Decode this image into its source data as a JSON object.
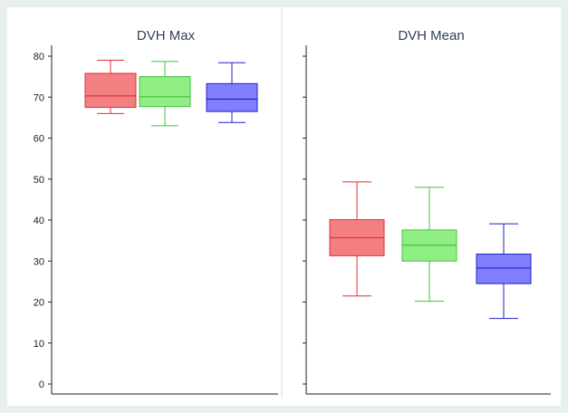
{
  "chart_data": [
    {
      "type": "box",
      "title": "DVH Max",
      "ylim": [
        0,
        80
      ],
      "yticks": [
        0,
        10,
        20,
        30,
        40,
        50,
        60,
        70,
        80
      ],
      "grid": false,
      "series": [
        {
          "color": "#e03030",
          "fill": "#f37f83",
          "whisker_low": 66,
          "q1": 67.5,
          "median": 70.3,
          "q3": 75.8,
          "whisker_high": 79
        },
        {
          "color": "#44c040",
          "fill": "#90ee85",
          "whisker_low": 63,
          "q1": 67.7,
          "median": 70.1,
          "q3": 75,
          "whisker_high": 78.7
        },
        {
          "color": "#2020c8",
          "fill": "#8080ff",
          "whisker_low": 63.8,
          "q1": 66.5,
          "median": 69.5,
          "q3": 73.3,
          "whisker_high": 78.4
        }
      ]
    },
    {
      "type": "box",
      "title": "DVH Mean",
      "ylim": [
        0,
        80
      ],
      "yticks": [
        0,
        10,
        20,
        30,
        40,
        50,
        60,
        70,
        80
      ],
      "grid": false,
      "series": [
        {
          "color": "#e03030",
          "fill": "#f37f83",
          "whisker_low": 21.5,
          "q1": 31.3,
          "median": 35.7,
          "q3": 40.1,
          "whisker_high": 49.3
        },
        {
          "color": "#44c040",
          "fill": "#90ee85",
          "whisker_low": 20.2,
          "q1": 30,
          "median": 33.9,
          "q3": 37.6,
          "whisker_high": 48
        },
        {
          "color": "#2020c8",
          "fill": "#8080ff",
          "whisker_low": 16,
          "q1": 24.5,
          "median": 28.3,
          "q3": 31.7,
          "whisker_high": 39.1
        }
      ]
    }
  ]
}
